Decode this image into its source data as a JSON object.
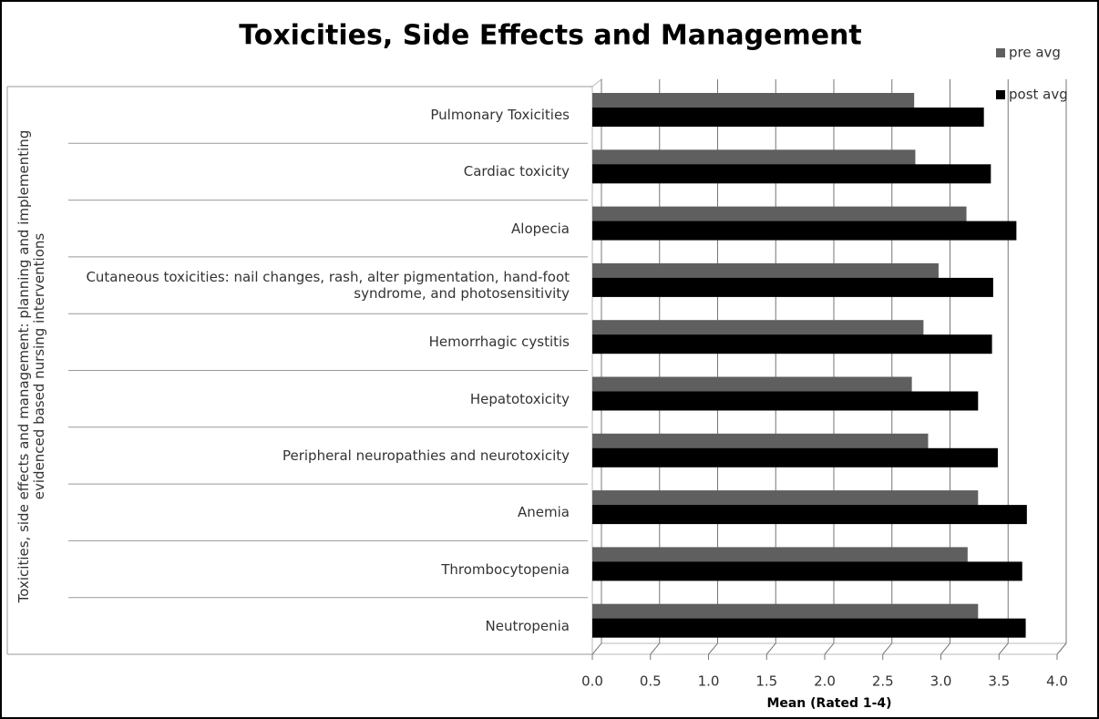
{
  "chart_data": {
    "type": "bar",
    "orientation": "horizontal",
    "title": "Toxicities, Side Effects and Management",
    "x_label": "Mean (Rated 1-4)",
    "y_label": "Toxicities, side effects and management: planning and implementing evidenced based nursing interventions",
    "categories": [
      "Pulmonary Toxicities",
      "Cardiac toxicity",
      "Alopecia",
      "Cutaneous toxicities: nail changes, rash, alter pigmentation, hand-foot syndrome, and photosensitivity",
      "Hemorrhagic cystitis",
      "Hepatotoxicity",
      "Peripheral neuropathies and neurotoxicity",
      "Anemia",
      "Thrombocytopenia",
      "Neutropenia"
    ],
    "series": [
      {
        "name": "pre avg",
        "color": "#5f5f5f",
        "values": [
          2.77,
          2.78,
          3.22,
          2.98,
          2.85,
          2.75,
          2.89,
          3.32,
          3.23,
          3.32
        ]
      },
      {
        "name": "post avg",
        "color": "#000000",
        "values": [
          3.37,
          3.43,
          3.65,
          3.45,
          3.44,
          3.32,
          3.49,
          3.74,
          3.7,
          3.73
        ]
      }
    ],
    "xlim": [
      0,
      4
    ],
    "xticks": [
      {
        "value": 0,
        "label": "0.0"
      },
      0.5,
      {
        "value": 1,
        "label": "1.0"
      },
      1.5,
      {
        "value": 2,
        "label": "2.0"
      },
      2.5,
      {
        "value": 3,
        "label": "3.0"
      },
      3.5,
      {
        "value": 4,
        "label": "4.0"
      }
    ],
    "grid": true,
    "legend": "top-right"
  }
}
